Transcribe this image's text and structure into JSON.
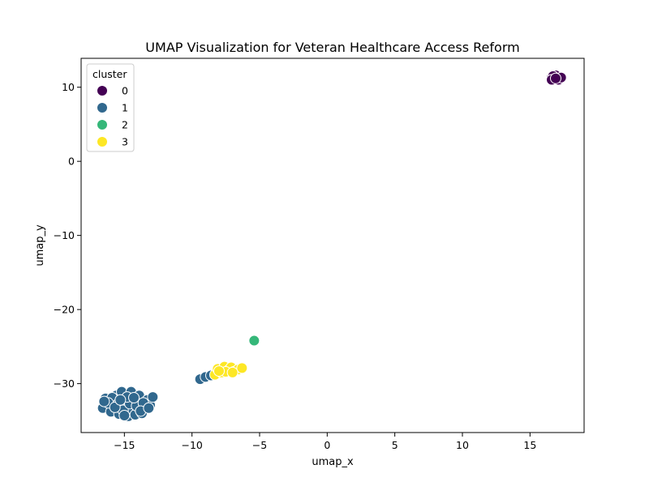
{
  "chart_data": {
    "type": "scatter",
    "title": "UMAP Visualization for Veteran Healthcare Access Reform",
    "xlabel": "umap_x",
    "ylabel": "umap_y",
    "xlim": [
      -18.2,
      19.0
    ],
    "ylim": [
      -36.6,
      13.9
    ],
    "xticks": [
      -15,
      -10,
      -5,
      0,
      5,
      10,
      15
    ],
    "yticks": [
      -30,
      -20,
      -10,
      0,
      10
    ],
    "tick_labels_x": [
      "−15",
      "−10",
      "−5",
      "0",
      "5",
      "10",
      "15"
    ],
    "tick_labels_y": [
      "−30",
      "−20",
      "−10",
      "0",
      "10"
    ],
    "grid": false,
    "legend": {
      "title": "cluster",
      "placement": "top-left",
      "entries": [
        "0",
        "1",
        "2",
        "3"
      ]
    },
    "colors": {
      "0": "#440154",
      "1": "#31688e",
      "2": "#35b779",
      "3": "#fde725"
    },
    "series": [
      {
        "name": "0",
        "points": [
          [
            16.6,
            11.3
          ],
          [
            16.8,
            11.1
          ],
          [
            17.0,
            11.4
          ],
          [
            16.9,
            11.6
          ],
          [
            17.2,
            11.2
          ],
          [
            16.7,
            11.5
          ],
          [
            17.1,
            11.0
          ],
          [
            16.6,
            11.0
          ],
          [
            17.3,
            11.3
          ],
          [
            16.9,
            11.2
          ]
        ]
      },
      {
        "name": "1",
        "points": [
          [
            -16.4,
            -32.0
          ],
          [
            -16.6,
            -33.3
          ],
          [
            -16.0,
            -33.8
          ],
          [
            -15.8,
            -32.5
          ],
          [
            -15.6,
            -31.6
          ],
          [
            -15.4,
            -34.1
          ],
          [
            -15.2,
            -31.1
          ],
          [
            -15.0,
            -33.0
          ],
          [
            -14.9,
            -32.3
          ],
          [
            -14.7,
            -34.4
          ],
          [
            -14.5,
            -31.1
          ],
          [
            -14.4,
            -33.5
          ],
          [
            -14.2,
            -34.2
          ],
          [
            -14.0,
            -32.4
          ],
          [
            -13.9,
            -31.6
          ],
          [
            -13.7,
            -34.0
          ],
          [
            -13.5,
            -33.2
          ],
          [
            -13.3,
            -32.2
          ],
          [
            -13.1,
            -32.9
          ],
          [
            -12.9,
            -31.8
          ],
          [
            -15.9,
            -31.9
          ],
          [
            -15.5,
            -32.8
          ],
          [
            -15.1,
            -33.6
          ],
          [
            -14.6,
            -32.7
          ],
          [
            -14.1,
            -33.0
          ],
          [
            -13.6,
            -32.6
          ],
          [
            -16.2,
            -32.6
          ],
          [
            -15.7,
            -33.2
          ],
          [
            -14.8,
            -31.8
          ],
          [
            -13.8,
            -33.7
          ],
          [
            -13.2,
            -33.3
          ],
          [
            -16.5,
            -32.4
          ],
          [
            -15.3,
            -32.2
          ],
          [
            -14.3,
            -31.9
          ],
          [
            -15.0,
            -34.3
          ],
          [
            -9.4,
            -29.4
          ],
          [
            -9.0,
            -29.1
          ],
          [
            -8.6,
            -28.9
          ]
        ]
      },
      {
        "name": "2",
        "points": [
          [
            -5.4,
            -24.2
          ]
        ]
      },
      {
        "name": "3",
        "points": [
          [
            -8.3,
            -28.8
          ],
          [
            -8.1,
            -28.0
          ],
          [
            -7.8,
            -28.5
          ],
          [
            -7.6,
            -27.7
          ],
          [
            -7.3,
            -28.2
          ],
          [
            -7.1,
            -27.8
          ],
          [
            -6.9,
            -28.4
          ],
          [
            -6.6,
            -28.1
          ],
          [
            -6.3,
            -27.9
          ],
          [
            -7.5,
            -28.4
          ],
          [
            -8.0,
            -28.3
          ],
          [
            -7.0,
            -28.5
          ]
        ]
      }
    ]
  }
}
